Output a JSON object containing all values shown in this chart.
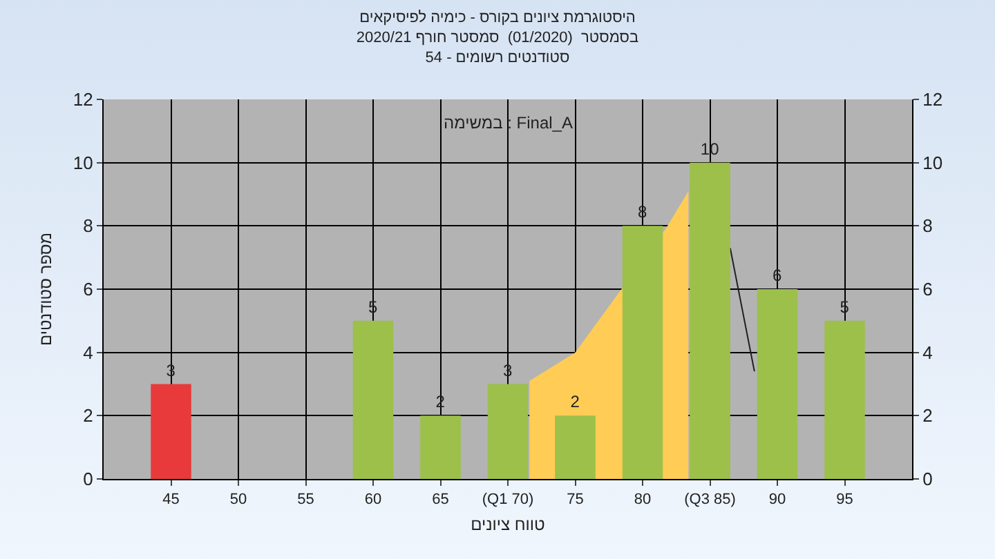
{
  "chart_data": {
    "type": "bar",
    "title": "היסטוגרמת ציונים בקורס - כימיה לפיסיקאים\nבסמסטר  (01/2020)  סמסטר חורף 2020/21\nסטודנטים רשומים - 54",
    "xlabel": "טווח ציונים",
    "ylabel": "מספר סטודנטים",
    "annotations": [
      "במשימה : Final_A"
    ],
    "x": [
      45,
      50,
      55,
      60,
      65,
      70,
      75,
      80,
      85,
      90,
      95
    ],
    "series": [
      {
        "type": "area",
        "color": "#ffcc55",
        "x": [
          71.6,
          75,
          78.6,
          81.7,
          83.4
        ],
        "values": [
          3.1,
          4,
          6.1,
          7.9,
          9.1
        ]
      },
      {
        "type": "line",
        "color": "#202020",
        "x": [
          86.5,
          88.3
        ],
        "values": [
          7.3,
          3.4
        ]
      },
      {
        "colors": [
          "#e83a3a",
          "#9cc04a",
          "#9cc04a",
          "#9cc04a",
          "#9cc04a",
          "#9cc04a",
          "#9cc04a",
          "#9cc04a",
          "#9cc04a",
          "#9cc04a",
          "#9cc04a"
        ],
        "values": [
          3,
          0,
          0,
          5,
          2,
          3,
          2,
          8,
          10,
          6,
          5
        ],
        "value_labels": [
          "3",
          null,
          null,
          "5",
          "2",
          "3",
          "2",
          "8",
          "10",
          "6",
          "5"
        ]
      }
    ],
    "xlim": [
      40,
      100
    ],
    "xticks": [
      45,
      50,
      55,
      60,
      65,
      {
        "value": 70,
        "label": "(Q1 70)"
      },
      75,
      80,
      {
        "value": 85,
        "label": "(Q3 85)"
      },
      90,
      95
    ],
    "ylim": [
      0,
      12
    ],
    "yticks": [
      0,
      2,
      4,
      6,
      8,
      10,
      12
    ],
    "y2lim": [
      0,
      12
    ],
    "y2ticks": [
      0,
      2,
      4,
      6,
      8,
      10,
      12
    ],
    "grid": true,
    "legend": false
  }
}
